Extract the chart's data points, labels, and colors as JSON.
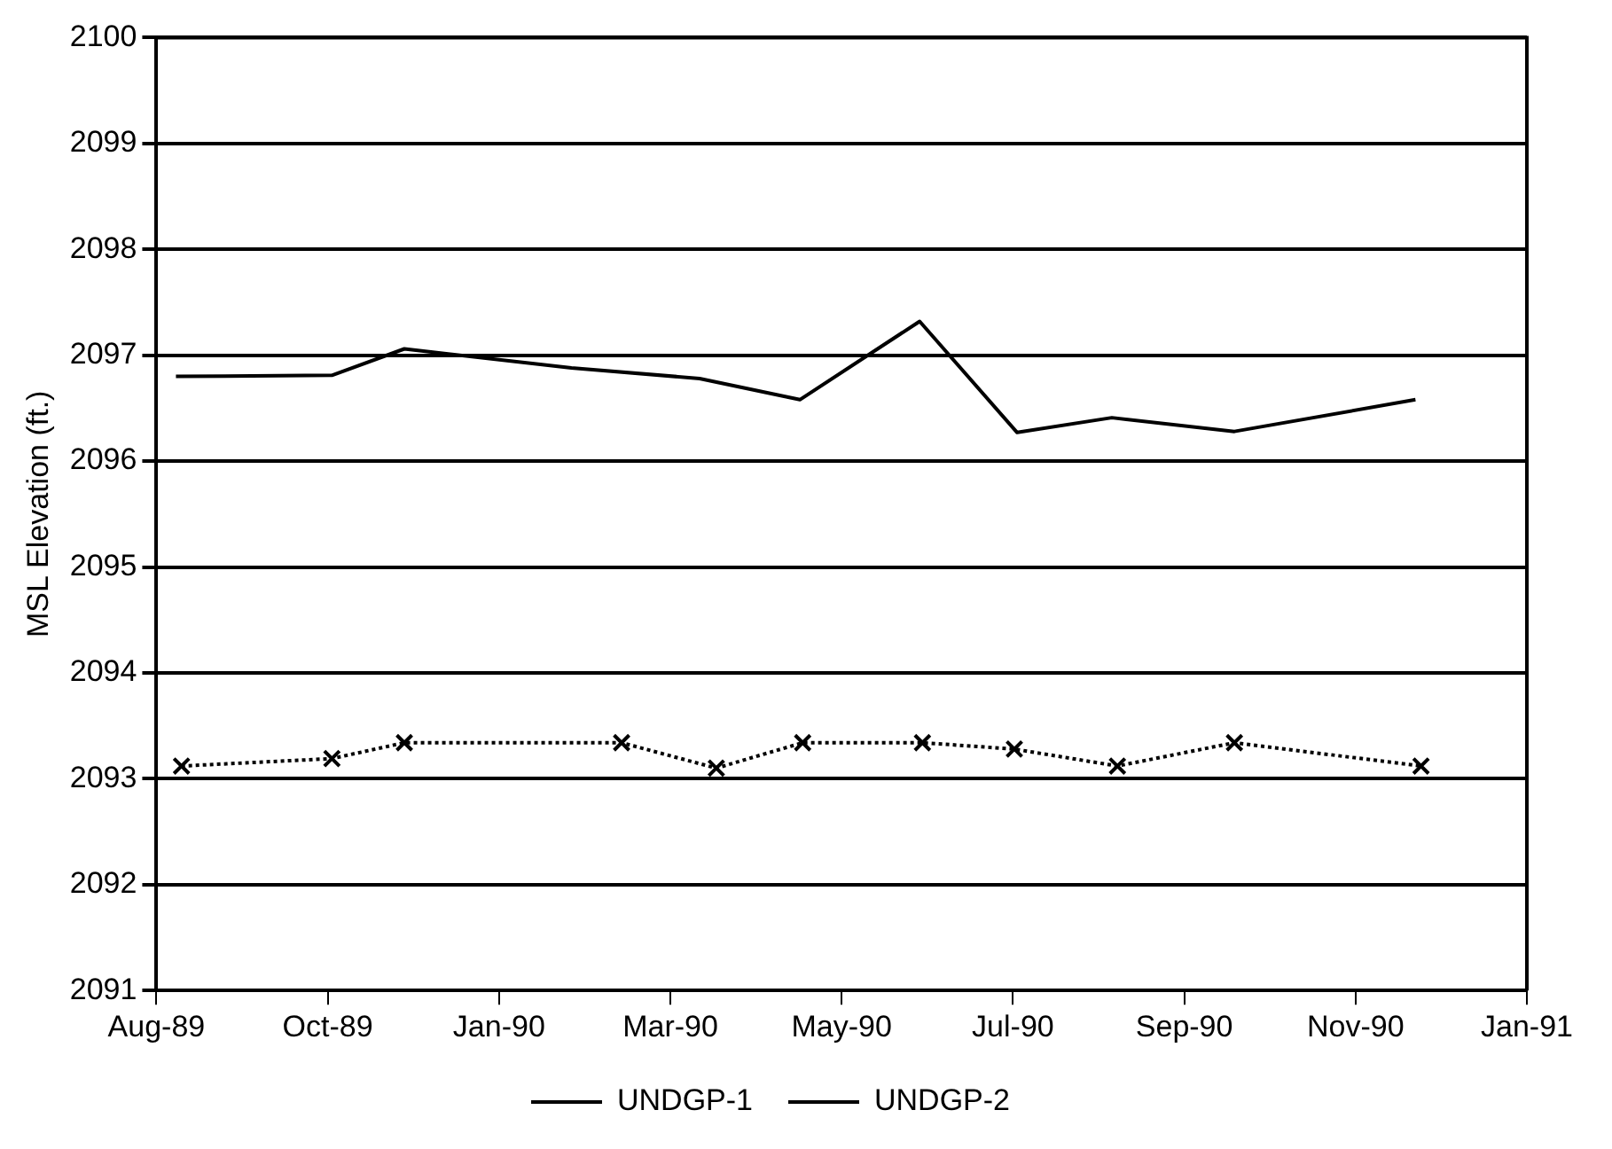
{
  "chart_data": {
    "type": "line",
    "ylabel": "MSL Elevation (ft.)",
    "xlim": [
      "1989-08-31",
      "1991-01-05"
    ],
    "xticks": [
      {
        "value": "1989-08-31",
        "label": "Aug-89"
      },
      {
        "value": "1989-10-31T12:00",
        "label": "Oct-89"
      },
      {
        "value": "1990-01-01",
        "label": "Jan-90"
      },
      {
        "value": "1990-03-03T12:00",
        "label": "Mar-90"
      },
      {
        "value": "1990-05-04",
        "label": "May-90"
      },
      {
        "value": "1990-07-04T12:00",
        "label": "Jul-90"
      },
      {
        "value": "1990-09-04",
        "label": "Sep-90"
      },
      {
        "value": "1990-11-04T12:00",
        "label": "Nov-90"
      },
      {
        "value": "1991-01-05",
        "label": "Jan-91"
      }
    ],
    "ylim": [
      2091,
      2100
    ],
    "yticks": [
      2091,
      2092,
      2093,
      2094,
      2095,
      2096,
      2097,
      2098,
      2099,
      2100
    ],
    "grid": "y",
    "legend": "bottom",
    "series": [
      {
        "name": "UNDGP-1",
        "color": "#000000",
        "marker": "none",
        "line_style": "solid",
        "x": [
          "1989-09-07",
          "1989-11-02",
          "1989-11-28",
          "1990-01-27",
          "1990-03-14",
          "1990-04-19",
          "1990-06-01",
          "1990-07-06",
          "1990-08-09",
          "1990-09-22",
          "1990-11-26"
        ],
        "values": [
          2096.8,
          2096.81,
          2097.06,
          2096.88,
          2096.78,
          2096.58,
          2097.32,
          2096.27,
          2096.41,
          2096.28,
          2096.58
        ]
      },
      {
        "name": "UNDGP-2",
        "color": "#000000",
        "marker": "cross",
        "line_style": "dotted",
        "x": [
          "1989-09-09",
          "1989-11-02",
          "1989-11-28",
          "1990-02-14",
          "1990-03-20",
          "1990-04-20",
          "1990-06-02",
          "1990-07-05",
          "1990-08-11",
          "1990-09-22",
          "1990-11-28"
        ],
        "values": [
          2093.12,
          2093.19,
          2093.34,
          2093.34,
          2093.1,
          2093.34,
          2093.34,
          2093.28,
          2093.12,
          2093.34,
          2093.12
        ]
      }
    ]
  }
}
